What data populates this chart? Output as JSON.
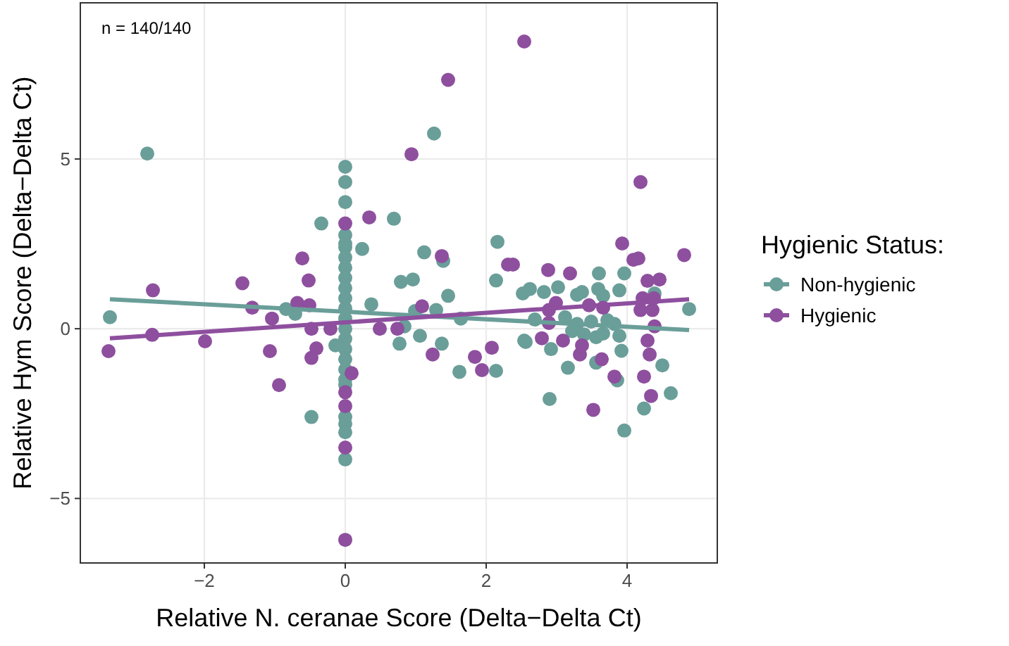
{
  "chart_data": {
    "type": "scatter",
    "xlabel": "Relative N. ceranae Score (Delta−Delta Ct)",
    "ylabel": "Relative Hym Score (Delta−Delta Ct)",
    "legend_title": "Hygienic Status:",
    "legend": "right",
    "grid": true,
    "marker": "circle",
    "annotations": [
      "n = 140/140"
    ],
    "xlim": [
      -3.76,
      5.28
    ],
    "xticks": [
      -2,
      0,
      2,
      4
    ],
    "ylim": [
      -6.9,
      9.6
    ],
    "yticks": [
      -5,
      0,
      5
    ],
    "series": [
      {
        "name": "Non-hygienic",
        "color": "#6a9e99",
        "x": [
          -2.81,
          -0.34,
          -3.34,
          -0.84,
          -0.71,
          -0.48,
          -0.14,
          0,
          0,
          0,
          0,
          0,
          0,
          0,
          0,
          0,
          0,
          0,
          0,
          0,
          0,
          0,
          0,
          0,
          0,
          0,
          0,
          0,
          0,
          0,
          0,
          1.26,
          0.69,
          0.24,
          1.12,
          1.39,
          2.16,
          3.6,
          3.96,
          0.79,
          0.96,
          2.14,
          0.37,
          0.84,
          0.77,
          1.06,
          0.99,
          1.37,
          1.46,
          1.29,
          1.64,
          1.62,
          2.14,
          2.54,
          2.52,
          2.62,
          2.82,
          3.02,
          3.29,
          3.36,
          3.59,
          3.66,
          3.89,
          4.39,
          4.88,
          2.69,
          3.12,
          3.29,
          3.49,
          3.72,
          3.82,
          3.22,
          3.39,
          3.56,
          3.66,
          3.89,
          2.56,
          2.92,
          3.56,
          3.92,
          4.5,
          3.16,
          3.86,
          4.62,
          4.24,
          2.9,
          3.96
        ],
        "values": [
          5.16,
          3.1,
          0.34,
          0.58,
          0.44,
          -2.6,
          -0.49,
          4.77,
          4.32,
          3.73,
          2.76,
          2.4,
          2.1,
          1.8,
          1.5,
          1.2,
          0.9,
          0.6,
          0.3,
          0,
          -0.3,
          -0.6,
          -0.9,
          -1.2,
          -1.5,
          -1.65,
          -2.6,
          -2.8,
          -3.05,
          -3.85,
          2.5,
          5.75,
          3.24,
          2.35,
          2.25,
          2.0,
          2.56,
          1.63,
          1.63,
          1.38,
          1.45,
          1.42,
          0.72,
          0.07,
          -0.44,
          -0.21,
          0.52,
          -0.44,
          0.97,
          0.55,
          0.3,
          -1.27,
          -1.24,
          -0.35,
          1.04,
          1.17,
          1.08,
          1.22,
          1.0,
          1.08,
          1.17,
          0.97,
          1.13,
          1.04,
          0.58,
          0.27,
          0.34,
          0.14,
          0.21,
          0.25,
          0.14,
          -0.07,
          -0.17,
          -0.25,
          -0.14,
          -0.21,
          -0.39,
          -0.6,
          -1.0,
          -0.65,
          -1.08,
          -1.15,
          -1.52,
          -1.9,
          -2.35,
          -2.07,
          -3.0
        ]
      },
      {
        "name": "Hygienic",
        "color": "#8e4f9e",
        "x": [
          -0.61,
          -1.46,
          -0.52,
          2.54,
          1.46,
          0.94,
          4.19,
          0.34,
          1.37,
          2.31,
          2.38,
          2.88,
          3.19,
          3.93,
          4.09,
          4.16,
          4.81,
          4.29,
          4.46,
          -3.36,
          -2.73,
          -2.74,
          -1.99,
          -1.32,
          -1.04,
          -1.07,
          -0.94,
          -0.68,
          -0.51,
          -0.48,
          -0.41,
          -0.48,
          -0.21,
          0,
          0.09,
          0,
          0,
          0,
          0,
          0.49,
          0.74,
          1.09,
          1.24,
          1.84,
          1.94,
          2.08,
          2.89,
          2.99,
          3.46,
          3.66,
          4.19,
          4.36,
          2.89,
          4.39,
          2.79,
          3.09,
          3.33,
          3.36,
          3.64,
          4.29,
          4.32,
          3.82,
          4.24,
          4.34,
          3.52,
          4.22,
          4.38
        ],
        "values": [
          2.07,
          1.34,
          1.42,
          8.46,
          7.33,
          5.14,
          4.32,
          3.28,
          2.14,
          1.89,
          1.89,
          1.73,
          1.63,
          2.51,
          2.03,
          2.07,
          2.17,
          1.41,
          1.45,
          -0.66,
          1.13,
          -0.18,
          -0.37,
          0.62,
          0.3,
          -0.66,
          -1.66,
          0.76,
          0.69,
          0,
          -0.58,
          -0.86,
          0,
          3.1,
          -1.31,
          -1.87,
          -2.28,
          -3.5,
          -6.22,
          0,
          0,
          0.66,
          -0.76,
          -0.83,
          -1.22,
          -0.56,
          0.55,
          0.76,
          0.69,
          0.62,
          0.55,
          0.55,
          0.17,
          0.07,
          -0.28,
          -0.35,
          -0.76,
          -0.49,
          -0.9,
          -0.35,
          -0.76,
          -1.41,
          -1.41,
          -1.98,
          -2.39,
          0.9,
          0.9
        ]
      },
      {
        "type": "line",
        "marker": "none",
        "color": "#6a9e99",
        "x": [
          -3.34,
          4.88
        ],
        "values": [
          0.87,
          -0.04
        ]
      },
      {
        "type": "line",
        "marker": "none",
        "color": "#8e4f9e",
        "x": [
          -3.34,
          4.88
        ],
        "values": [
          -0.28,
          0.87
        ]
      }
    ]
  }
}
